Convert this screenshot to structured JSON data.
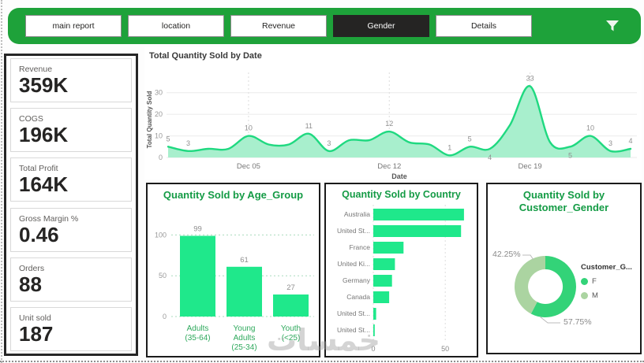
{
  "header": {
    "buttons": [
      {
        "label": "main report",
        "active": false
      },
      {
        "label": "location",
        "active": false
      },
      {
        "label": "Revenue",
        "active": false
      },
      {
        "label": "Gender",
        "active": true
      },
      {
        "label": "Details",
        "active": false
      }
    ],
    "filter_icon": "funnel-filter",
    "bar_color": "#1EA23A"
  },
  "kpis": [
    {
      "label": "Revenue",
      "value": "359K"
    },
    {
      "label": "COGS",
      "value": "196K"
    },
    {
      "label": "Total Profit",
      "value": "164K"
    },
    {
      "label": "Gross Margin %",
      "value": "0.46"
    },
    {
      "label": "Orders",
      "value": "88"
    },
    {
      "label": "Unit sold",
      "value": "187"
    }
  ],
  "watermark": "خمسات",
  "chart_data": [
    {
      "type": "area",
      "title": "Total Quantity Sold by Date",
      "xlabel": "Date",
      "ylabel": "Total Quantity Sold",
      "x": [
        "Dec 01",
        "Dec 02",
        "Dec 03",
        "Dec 04",
        "Dec 05",
        "Dec 06",
        "Dec 07",
        "Dec 08",
        "Dec 09",
        "Dec 10",
        "Dec 11",
        "Dec 12",
        "Dec 13",
        "Dec 14",
        "Dec 15",
        "Dec 16",
        "Dec 17",
        "Dec 18",
        "Dec 19",
        "Dec 20",
        "Dec 21",
        "Dec 22",
        "Dec 23",
        "Dec 24"
      ],
      "values": [
        5,
        3,
        4,
        4,
        10,
        6,
        6,
        11,
        3,
        8,
        8,
        12,
        7,
        6,
        1,
        5,
        4,
        15,
        33,
        7,
        5,
        10,
        3,
        4
      ],
      "labels": [
        5,
        3,
        null,
        null,
        10,
        null,
        null,
        11,
        3,
        null,
        null,
        12,
        null,
        null,
        1,
        5,
        4,
        null,
        33,
        null,
        5,
        10,
        3,
        4
      ],
      "label_pos": [
        "a",
        "a",
        null,
        null,
        "a",
        null,
        null,
        "a",
        "a",
        null,
        null,
        "a",
        null,
        null,
        "a",
        "a",
        "b",
        null,
        "a",
        null,
        "b",
        "a",
        "a",
        "a"
      ],
      "x_ticks": [
        "Dec 05",
        "Dec 12",
        "Dec 19"
      ],
      "x_tick_indices": [
        4,
        11,
        18
      ],
      "y_ticks": [
        0,
        10,
        20,
        30
      ],
      "ylim": [
        0,
        35
      ],
      "grid": true,
      "line_color": "#1FD980",
      "fill_color": "#A8EFCD"
    },
    {
      "type": "bar",
      "title": "Quantity Sold by Age_Group",
      "categories": [
        [
          "Adults",
          "(35-64)"
        ],
        [
          "Young",
          "Adults",
          "(25-34)"
        ],
        [
          "Youth",
          "(<25)"
        ]
      ],
      "values": [
        99,
        61,
        27
      ],
      "y_ticks": [
        0,
        50,
        100
      ],
      "ylim": [
        0,
        112
      ],
      "bar_color": "#1FE88B",
      "category_color": "#2EA95C"
    },
    {
      "type": "hbar",
      "title": "Quantity Sold by Country",
      "categories": [
        "Australia",
        "United St...",
        "France",
        "United Ki...",
        "Germany",
        "Canada",
        "United St...",
        "United St..."
      ],
      "values": [
        63,
        61,
        21,
        15,
        13,
        11,
        2,
        1
      ],
      "x_ticks": [
        0,
        50
      ],
      "xlim": [
        0,
        68
      ],
      "bar_color": "#1FE88B"
    },
    {
      "type": "donut",
      "title": [
        "Quantity Sold by",
        "Customer_Gender"
      ],
      "legend_title": "Customer_G...",
      "slices": [
        {
          "name": "F",
          "pct": 57.75,
          "label": "57.75%",
          "color": "#33D378"
        },
        {
          "name": "M",
          "pct": 42.25,
          "label": "42.25%",
          "color": "#ABD4A1"
        }
      ],
      "legend_position": "right"
    }
  ]
}
